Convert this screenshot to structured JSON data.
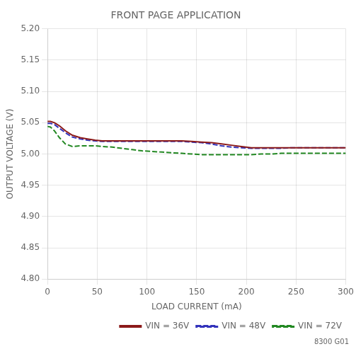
{
  "chart_data": {
    "type": "line",
    "title": "FRONT PAGE APPLICATION",
    "xlabel": "LOAD CURRENT (mA)",
    "ylabel": "OUTPUT VOLTAGE (V)",
    "annotations": [
      "8300 G01"
    ],
    "x": [
      0,
      3,
      7,
      12,
      18,
      25,
      33,
      40,
      48,
      55,
      65,
      75,
      85,
      95,
      105,
      115,
      125,
      135,
      145,
      155,
      165,
      175,
      185,
      195,
      205,
      215,
      225,
      235,
      245,
      255,
      265,
      275,
      285,
      295,
      300
    ],
    "series": [
      {
        "name": "VIN = 36V",
        "color": "#8b1a1a",
        "line_style": "solid",
        "values": [
          5.052,
          5.052,
          5.05,
          5.045,
          5.037,
          5.03,
          5.026,
          5.024,
          5.022,
          5.021,
          5.021,
          5.021,
          5.021,
          5.021,
          5.021,
          5.021,
          5.021,
          5.021,
          5.02,
          5.019,
          5.018,
          5.016,
          5.014,
          5.012,
          5.01,
          5.01,
          5.01,
          5.01,
          5.01,
          5.01,
          5.01,
          5.01,
          5.01,
          5.01,
          5.01
        ]
      },
      {
        "name": "VIN = 48V",
        "color": "#3333bb",
        "line_style": "dashed",
        "values": [
          5.049,
          5.049,
          5.047,
          5.041,
          5.034,
          5.027,
          5.024,
          5.022,
          5.021,
          5.02,
          5.02,
          5.02,
          5.02,
          5.02,
          5.02,
          5.02,
          5.02,
          5.02,
          5.019,
          5.018,
          5.016,
          5.013,
          5.011,
          5.01,
          5.009,
          5.009,
          5.009,
          5.009,
          5.01,
          5.01,
          5.01,
          5.01,
          5.01,
          5.01,
          5.01
        ]
      },
      {
        "name": "VIN = 72V",
        "color": "#228822",
        "line_style": "dashed",
        "values": [
          5.044,
          5.043,
          5.037,
          5.026,
          5.016,
          5.012,
          5.013,
          5.013,
          5.013,
          5.012,
          5.011,
          5.009,
          5.007,
          5.005,
          5.004,
          5.003,
          5.002,
          5.001,
          5.0,
          4.999,
          4.999,
          4.999,
          4.999,
          4.999,
          4.999,
          5.0,
          5.0,
          5.001,
          5.001,
          5.001,
          5.001,
          5.001,
          5.001,
          5.001,
          5.001
        ]
      }
    ],
    "xlim": [
      0,
      300
    ],
    "xticks": [
      0,
      50,
      100,
      150,
      200,
      250,
      300
    ],
    "ylim": [
      4.8,
      5.2
    ],
    "yticks": [
      {
        "value": 4.8,
        "label": "4.80"
      },
      4.85,
      {
        "value": 4.9,
        "label": "4.90"
      },
      4.95,
      {
        "value": 5.0,
        "label": "5.00"
      },
      5.05,
      {
        "value": 5.1,
        "label": "5.10"
      },
      5.15,
      {
        "value": 5.2,
        "label": "5.20"
      }
    ],
    "grid": true,
    "legend": "lower right"
  }
}
